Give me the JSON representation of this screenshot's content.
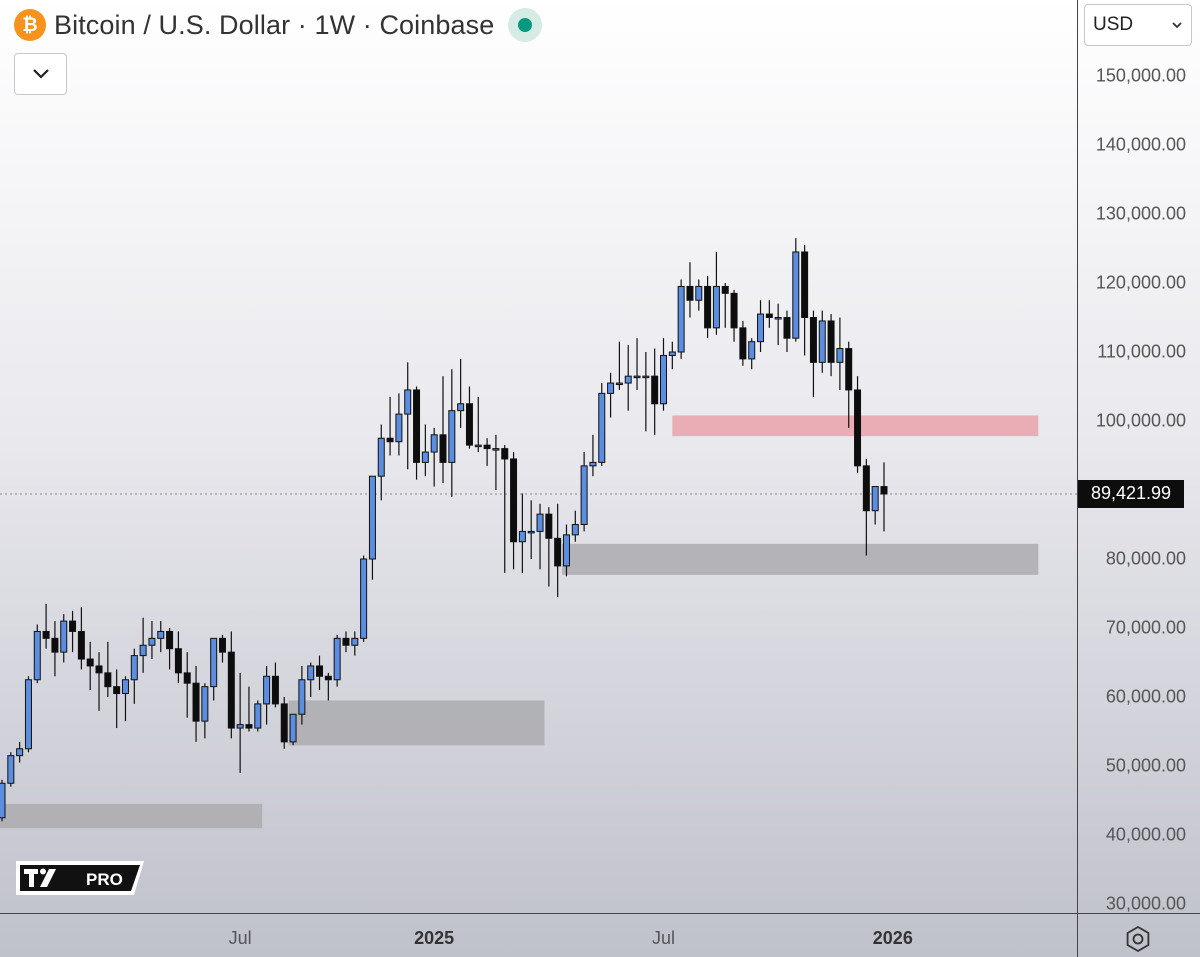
{
  "header": {
    "title": "Bitcoin / U.S. Dollar · 1W · Coinbase",
    "symbol_icon": "bitcoin-icon",
    "status_icon": "market-status-dot",
    "collapse_icon": "chevron-down-icon"
  },
  "currency": {
    "selected": "USD"
  },
  "branding": {
    "badge": "PRO",
    "logo_icon": "tradingview-logo"
  },
  "settings_icon": "gear-icon",
  "colors": {
    "up": "#5b8de0",
    "down": "#0d0d0d",
    "zone_gray": "#a9a9ad",
    "zone_red": "#eaa2aa"
  },
  "chart_data": {
    "type": "candlestick",
    "interval": "1W",
    "y_scale": [
      30000,
      150000
    ],
    "price_axis_ticks": [
      "150,000.00",
      "140,000.00",
      "130,000.00",
      "120,000.00",
      "110,000.00",
      "100,000.00",
      "80,000.00",
      "70,000.00",
      "60,000.00",
      "50,000.00",
      "40,000.00",
      "30,000.00"
    ],
    "time_axis_ticks": [
      {
        "label": "Jul",
        "bold": false,
        "index": 27
      },
      {
        "label": "2025",
        "bold": true,
        "index": 49
      },
      {
        "label": "Jul",
        "bold": false,
        "index": 75
      },
      {
        "label": "2026",
        "bold": true,
        "index": 101
      }
    ],
    "last_price": 89421.99,
    "last_price_label": "89,421.99",
    "candles": [
      [
        42500,
        48000,
        42000,
        47500
      ],
      [
        47500,
        52000,
        47000,
        51500
      ],
      [
        51500,
        53500,
        50500,
        52500
      ],
      [
        52500,
        63000,
        52000,
        62500
      ],
      [
        62500,
        70500,
        62000,
        69500
      ],
      [
        69500,
        73500,
        67000,
        68500
      ],
      [
        68500,
        71000,
        63000,
        66500
      ],
      [
        66500,
        72000,
        65000,
        71000
      ],
      [
        71000,
        72500,
        66500,
        69500
      ],
      [
        69500,
        73000,
        64000,
        65500
      ],
      [
        65500,
        68000,
        61000,
        64500
      ],
      [
        64500,
        66500,
        58000,
        63500
      ],
      [
        63500,
        68000,
        60000,
        61500
      ],
      [
        61500,
        64000,
        55500,
        60500
      ],
      [
        60500,
        63000,
        56500,
        62500
      ],
      [
        62500,
        67000,
        59000,
        66000
      ],
      [
        66000,
        71500,
        63500,
        67500
      ],
      [
        67500,
        71000,
        65500,
        68500
      ],
      [
        68500,
        71000,
        66500,
        69500
      ],
      [
        69500,
        70000,
        64000,
        67000
      ],
      [
        67000,
        69500,
        62000,
        63500
      ],
      [
        63500,
        66500,
        57000,
        62000
      ],
      [
        62000,
        64500,
        53500,
        56500
      ],
      [
        56500,
        62000,
        54000,
        61500
      ],
      [
        61500,
        68500,
        59500,
        68500
      ],
      [
        68500,
        69000,
        65000,
        66500
      ],
      [
        66500,
        69500,
        54000,
        55500
      ],
      [
        55500,
        63500,
        49000,
        56000
      ],
      [
        56000,
        61500,
        55000,
        55500
      ],
      [
        55500,
        59500,
        55000,
        59000
      ],
      [
        59000,
        64500,
        56000,
        63000
      ],
      [
        63000,
        65000,
        58500,
        59000
      ],
      [
        59000,
        60000,
        52500,
        53500
      ],
      [
        53500,
        57500,
        53000,
        57500
      ],
      [
        57500,
        64500,
        56000,
        62500
      ],
      [
        62500,
        65000,
        60000,
        64500
      ],
      [
        64500,
        66000,
        61000,
        63000
      ],
      [
        63000,
        63500,
        59500,
        62500
      ],
      [
        62500,
        69000,
        61500,
        68500
      ],
      [
        68500,
        69500,
        66500,
        67500
      ],
      [
        67500,
        69500,
        66000,
        68500
      ],
      [
        68500,
        80500,
        68000,
        80000
      ],
      [
        80000,
        92000,
        77000,
        92000
      ],
      [
        92000,
        99500,
        88500,
        97500
      ],
      [
        97500,
        103500,
        95000,
        97000
      ],
      [
        97000,
        104000,
        95000,
        101000
      ],
      [
        101000,
        108500,
        93000,
        104500
      ],
      [
        104500,
        105000,
        91500,
        94000
      ],
      [
        94000,
        99500,
        92000,
        95500
      ],
      [
        95500,
        99000,
        90500,
        98000
      ],
      [
        98000,
        106500,
        91000,
        94000
      ],
      [
        94000,
        107500,
        89000,
        101500
      ],
      [
        101500,
        109000,
        99000,
        102500
      ],
      [
        102500,
        105000,
        96000,
        96500
      ],
      [
        96500,
        103500,
        95500,
        96500
      ],
      [
        96500,
        97500,
        93500,
        96000
      ],
      [
        96000,
        98000,
        90000,
        96000
      ],
      [
        96000,
        96500,
        78000,
        94500
      ],
      [
        94500,
        95500,
        78500,
        82500
      ],
      [
        82500,
        89500,
        78000,
        84000
      ],
      [
        84000,
        88500,
        80000,
        84000
      ],
      [
        84000,
        88000,
        78500,
        86500
      ],
      [
        86500,
        87500,
        76000,
        83000
      ],
      [
        83000,
        88000,
        74500,
        79000
      ],
      [
        79000,
        85000,
        77500,
        83500
      ],
      [
        83500,
        87000,
        82500,
        85000
      ],
      [
        85000,
        95500,
        84000,
        93500
      ],
      [
        93500,
        98000,
        92000,
        94000
      ],
      [
        94000,
        105500,
        93500,
        104000
      ],
      [
        104000,
        107000,
        100500,
        105500
      ],
      [
        105500,
        111500,
        104500,
        105500
      ],
      [
        105500,
        111000,
        101500,
        106500
      ],
      [
        106500,
        112000,
        104500,
        106500
      ],
      [
        106500,
        110000,
        98500,
        106500
      ],
      [
        106500,
        110500,
        98000,
        102500
      ],
      [
        102500,
        112000,
        101500,
        109500
      ],
      [
        109500,
        111500,
        107500,
        110000
      ],
      [
        110000,
        120500,
        109000,
        119500
      ],
      [
        119500,
        123000,
        115000,
        117500
      ],
      [
        117500,
        120500,
        116000,
        119500
      ],
      [
        119500,
        121000,
        112000,
        113500
      ],
      [
        113500,
        124500,
        112500,
        119500
      ],
      [
        119500,
        120000,
        113500,
        118500
      ],
      [
        118500,
        119000,
        111500,
        113500
      ],
      [
        113500,
        114500,
        108000,
        109000
      ],
      [
        109000,
        112000,
        107500,
        111500
      ],
      [
        111500,
        117500,
        110000,
        115500
      ],
      [
        115500,
        117500,
        113500,
        115000
      ],
      [
        115000,
        117000,
        111000,
        115000
      ],
      [
        115000,
        116000,
        110000,
        112000
      ],
      [
        112000,
        126500,
        111500,
        124500
      ],
      [
        124500,
        125500,
        109500,
        115000
      ],
      [
        115000,
        116000,
        103500,
        108500
      ],
      [
        108500,
        116000,
        107000,
        114500
      ],
      [
        114500,
        115500,
        106500,
        108500
      ],
      [
        108500,
        115000,
        104500,
        110500
      ],
      [
        110500,
        111500,
        99000,
        104500
      ],
      [
        104500,
        106500,
        92500,
        93500
      ],
      [
        93500,
        94500,
        80500,
        87000
      ],
      [
        87000,
        90500,
        85000,
        90500
      ],
      [
        90500,
        94000,
        84000,
        89422
      ]
    ],
    "zones": [
      {
        "start": -1,
        "end": 29.5,
        "low": 41000,
        "high": 44500,
        "color": "gray"
      },
      {
        "start": 32.5,
        "end": 61.5,
        "low": 53000,
        "high": 59500,
        "color": "gray"
      },
      {
        "start": 63.5,
        "end": 117.5,
        "low": 77700,
        "high": 82200,
        "color": "gray"
      },
      {
        "start": 76,
        "end": 117.5,
        "low": 97800,
        "high": 100800,
        "color": "red"
      }
    ]
  }
}
